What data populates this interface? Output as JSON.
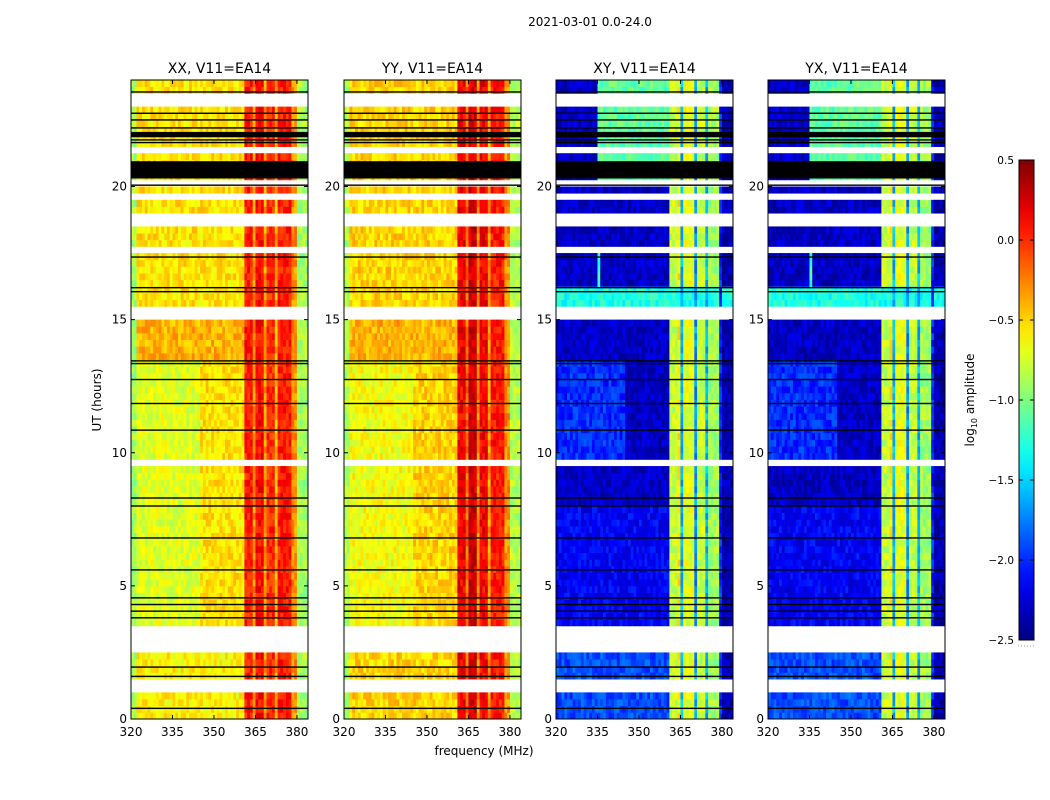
{
  "suptitle": "2021-03-01 0.0-24.0",
  "shared": {
    "xlabel": "frequency (MHz)",
    "ylabel": "UT (hours)",
    "xlim": [
      320,
      384
    ],
    "ylim": [
      0,
      24
    ],
    "xticks": [
      320,
      335,
      350,
      365,
      380
    ],
    "xtick_labels": [
      "320",
      "335",
      "350",
      "365",
      "380"
    ],
    "yticks": [
      0,
      5,
      10,
      15,
      20
    ],
    "ytick_labels": [
      "0",
      "5",
      "10",
      "15",
      "20"
    ],
    "flagged_hours": [
      [
        23.0,
        23.4
      ],
      [
        21.3,
        21.6
      ],
      [
        20.1,
        20.3
      ],
      [
        19.45,
        19.8
      ],
      [
        18.55,
        18.9
      ],
      [
        17.4,
        17.7
      ],
      [
        15.1,
        15.4
      ],
      [
        12.5,
        12.6
      ],
      [
        9.5,
        9.8
      ],
      [
        2.5,
        3.5
      ],
      [
        1.1,
        1.4
      ]
    ],
    "black_bands": [
      [
        20.3,
        20.95
      ],
      [
        21.85,
        22.05
      ]
    ],
    "black_lines": [
      23.55,
      22.75,
      22.5,
      22.2,
      21.75,
      21.65,
      20.05,
      17.35,
      16.2,
      16.05,
      13.45,
      13.35,
      12.75,
      11.85,
      10.85,
      8.3,
      8.0,
      6.8,
      5.6,
      4.55,
      4.3,
      4.05,
      3.8,
      1.95,
      1.6,
      0.4
    ]
  },
  "chart_data": [
    {
      "type": "heatmap",
      "title": "XX, V11=EA14",
      "freq_profile": [
        [
          320,
          322,
          -0.9
        ],
        [
          322,
          361,
          -0.55
        ],
        [
          361,
          364,
          0.05
        ],
        [
          364,
          365,
          -0.3
        ],
        [
          365,
          368,
          0.1
        ],
        [
          368,
          369,
          -0.35
        ],
        [
          369,
          372,
          0.0
        ],
        [
          372,
          373,
          -0.4
        ],
        [
          373,
          378,
          0.05
        ],
        [
          378,
          380,
          -0.3
        ],
        [
          380,
          384,
          -0.9
        ]
      ],
      "overrides": [
        [
          13.5,
          15.1,
          322,
          361,
          -0.4
        ],
        [
          3.5,
          13.5,
          322,
          345,
          -0.72
        ],
        [
          0,
          2.5,
          322,
          361,
          -0.6
        ]
      ]
    },
    {
      "type": "heatmap",
      "title": "YY, V11=EA14",
      "freq_profile": [
        [
          320,
          322,
          -0.85
        ],
        [
          322,
          361,
          -0.5
        ],
        [
          361,
          364,
          0.15
        ],
        [
          364,
          365,
          -0.2
        ],
        [
          365,
          368,
          0.25
        ],
        [
          368,
          369,
          -0.3
        ],
        [
          369,
          372,
          0.15
        ],
        [
          372,
          373,
          -0.35
        ],
        [
          373,
          378,
          0.05
        ],
        [
          378,
          380,
          -0.3
        ],
        [
          380,
          384,
          -0.85
        ]
      ],
      "overrides": [
        [
          13.5,
          15.1,
          322,
          361,
          -0.4
        ],
        [
          3.5,
          13.5,
          322,
          345,
          -0.65
        ]
      ]
    },
    {
      "type": "heatmap",
      "title": "XY, V11=EA14",
      "freq_profile": [
        [
          320,
          361,
          -2.3
        ],
        [
          361,
          364,
          -0.8
        ],
        [
          364,
          365.5,
          -0.6
        ],
        [
          365.5,
          366.5,
          -1.6
        ],
        [
          366.5,
          370,
          -0.7
        ],
        [
          370,
          371,
          -1.7
        ],
        [
          371,
          374.5,
          -0.8
        ],
        [
          374.5,
          375.5,
          -1.6
        ],
        [
          375.5,
          379,
          -0.9
        ],
        [
          379,
          380,
          -2.0
        ],
        [
          380,
          384,
          -2.35
        ]
      ],
      "overrides": [
        [
          20.3,
          24,
          335,
          361,
          -1.1
        ],
        [
          15.4,
          16.2,
          320,
          384,
          -1.3
        ],
        [
          0,
          2.5,
          320,
          361,
          -1.9
        ],
        [
          3.5,
          8.0,
          320,
          361,
          -2.15
        ],
        [
          9.8,
          13.5,
          320,
          345,
          -2.0
        ],
        [
          16.2,
          17.4,
          335,
          336,
          -1.2
        ]
      ]
    },
    {
      "type": "heatmap",
      "title": "YX, V11=EA14",
      "freq_profile": [
        [
          320,
          361,
          -2.3
        ],
        [
          361,
          364,
          -0.8
        ],
        [
          364,
          365.5,
          -0.6
        ],
        [
          365.5,
          366.5,
          -1.6
        ],
        [
          366.5,
          370,
          -0.7
        ],
        [
          370,
          371,
          -1.7
        ],
        [
          371,
          374.5,
          -0.8
        ],
        [
          374.5,
          375.5,
          -1.6
        ],
        [
          375.5,
          379,
          -0.9
        ],
        [
          379,
          380,
          -2.0
        ],
        [
          380,
          384,
          -2.35
        ]
      ],
      "overrides": [
        [
          20.3,
          24,
          335,
          361,
          -1.1
        ],
        [
          15.4,
          16.2,
          320,
          384,
          -1.3
        ],
        [
          0,
          2.5,
          320,
          361,
          -1.9
        ],
        [
          3.5,
          8.0,
          320,
          361,
          -2.15
        ],
        [
          9.8,
          13.5,
          320,
          345,
          -2.0
        ],
        [
          16.2,
          17.4,
          335,
          336,
          -1.2
        ]
      ]
    }
  ],
  "colorbar": {
    "label": "log10 amplitude",
    "label_main": "log",
    "label_sub": "10",
    "label_rest": " amplitude",
    "range": [
      -2.5,
      0.5
    ],
    "colormap": "jet",
    "ticks": [
      -2.5,
      -2.0,
      -1.5,
      -1.0,
      -0.5,
      0.0,
      0.5
    ],
    "tick_labels": [
      "−2.5",
      "−2.0",
      "−1.5",
      "−1.0",
      "−0.5",
      "0.0",
      "0.5"
    ]
  }
}
